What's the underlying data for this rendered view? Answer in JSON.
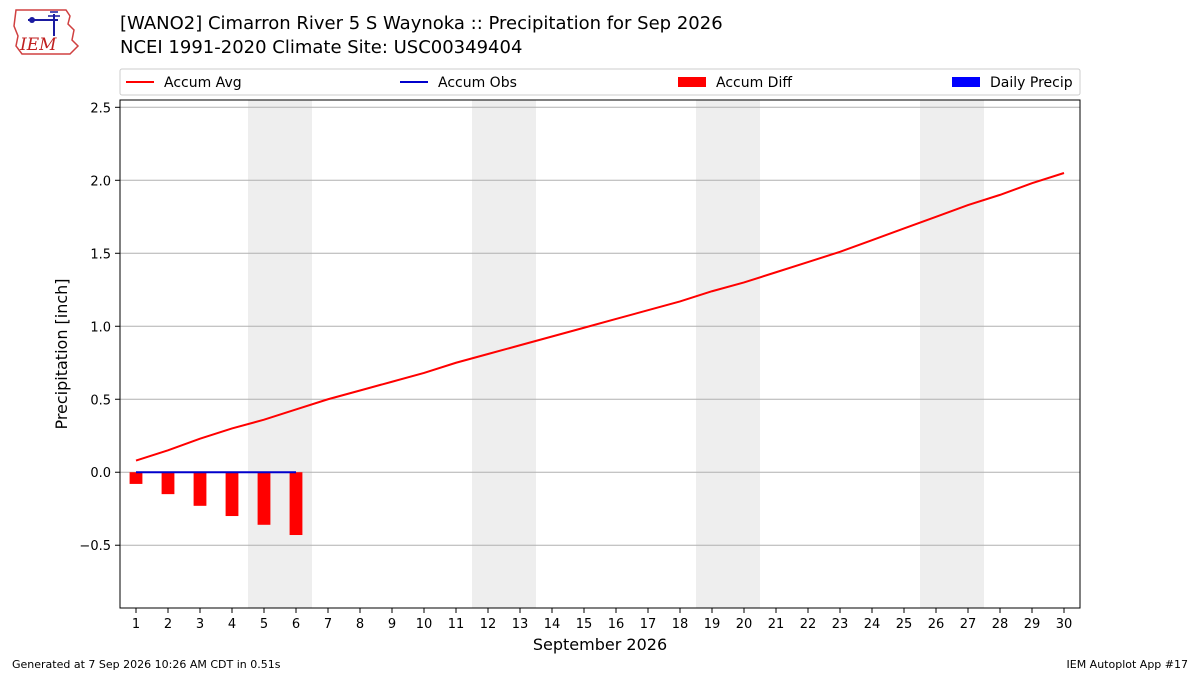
{
  "header": {
    "title": "[WANO2] Cimarron River 5 S Waynoka :: Precipitation for Sep 2026",
    "subtitle": "NCEI 1991-2020 Climate Site: USC00349404",
    "logo_text": "IEM"
  },
  "footer": {
    "generated": "Generated at 7 Sep 2026 10:26 AM CDT in 0.51s",
    "app": "IEM Autoplot App #17"
  },
  "colors": {
    "accum_avg": "#ff0000",
    "accum_obs": "#0000cc",
    "accum_diff": "#ff0000",
    "daily_precip": "#0000ff",
    "weekend_shade": "#eeeeee",
    "grid": "#b0b0b0"
  },
  "chart_data": {
    "type": "line",
    "xlabel": "September 2026",
    "ylabel": "Precipitation [inch]",
    "xlim": [
      0.5,
      30.5
    ],
    "ylim": [
      -0.93,
      2.55
    ],
    "yticks": [
      -0.5,
      0.0,
      0.5,
      1.0,
      1.5,
      2.0,
      2.5
    ],
    "ytick_labels": [
      "−0.5",
      "0.0",
      "0.5",
      "1.0",
      "1.5",
      "2.0",
      "2.5"
    ],
    "x": [
      1,
      2,
      3,
      4,
      5,
      6,
      7,
      8,
      9,
      10,
      11,
      12,
      13,
      14,
      15,
      16,
      17,
      18,
      19,
      20,
      21,
      22,
      23,
      24,
      25,
      26,
      27,
      28,
      29,
      30
    ],
    "grid": "horizontal",
    "legend": {
      "placement": "top",
      "entries": [
        {
          "label": "Accum Avg",
          "kind": "line",
          "color": "#ff0000"
        },
        {
          "label": "Accum Obs",
          "kind": "line",
          "color": "#0000cc"
        },
        {
          "label": "Accum Diff",
          "kind": "patch",
          "color": "#ff0000"
        },
        {
          "label": "Daily Precip",
          "kind": "patch",
          "color": "#0000ff"
        }
      ]
    },
    "weekend_shading": [
      [
        4.5,
        6.5
      ],
      [
        11.5,
        13.5
      ],
      [
        18.5,
        20.5
      ],
      [
        25.5,
        27.5
      ]
    ],
    "series": [
      {
        "name": "Accum Avg",
        "type": "line",
        "x": [
          1,
          2,
          3,
          4,
          5,
          6,
          7,
          8,
          9,
          10,
          11,
          12,
          13,
          14,
          15,
          16,
          17,
          18,
          19,
          20,
          21,
          22,
          23,
          24,
          25,
          26,
          27,
          28,
          29,
          30
        ],
        "values": [
          0.08,
          0.15,
          0.23,
          0.3,
          0.36,
          0.43,
          0.5,
          0.56,
          0.62,
          0.68,
          0.75,
          0.81,
          0.87,
          0.93,
          0.99,
          1.05,
          1.11,
          1.17,
          1.24,
          1.3,
          1.37,
          1.44,
          1.51,
          1.59,
          1.67,
          1.75,
          1.83,
          1.9,
          1.98,
          2.05
        ]
      },
      {
        "name": "Accum Obs",
        "type": "line",
        "x": [
          1,
          2,
          3,
          4,
          5,
          6
        ],
        "values": [
          0.0,
          0.0,
          0.0,
          0.0,
          0.0,
          0.0
        ]
      },
      {
        "name": "Accum Diff",
        "type": "bar",
        "x": [
          1,
          2,
          3,
          4,
          5,
          6
        ],
        "values": [
          -0.08,
          -0.15,
          -0.23,
          -0.3,
          -0.36,
          -0.43
        ]
      },
      {
        "name": "Daily Precip",
        "type": "bar",
        "x": [
          1,
          2,
          3,
          4,
          5,
          6
        ],
        "values": [
          0.0,
          0.0,
          0.0,
          0.0,
          0.0,
          0.0
        ]
      }
    ]
  }
}
